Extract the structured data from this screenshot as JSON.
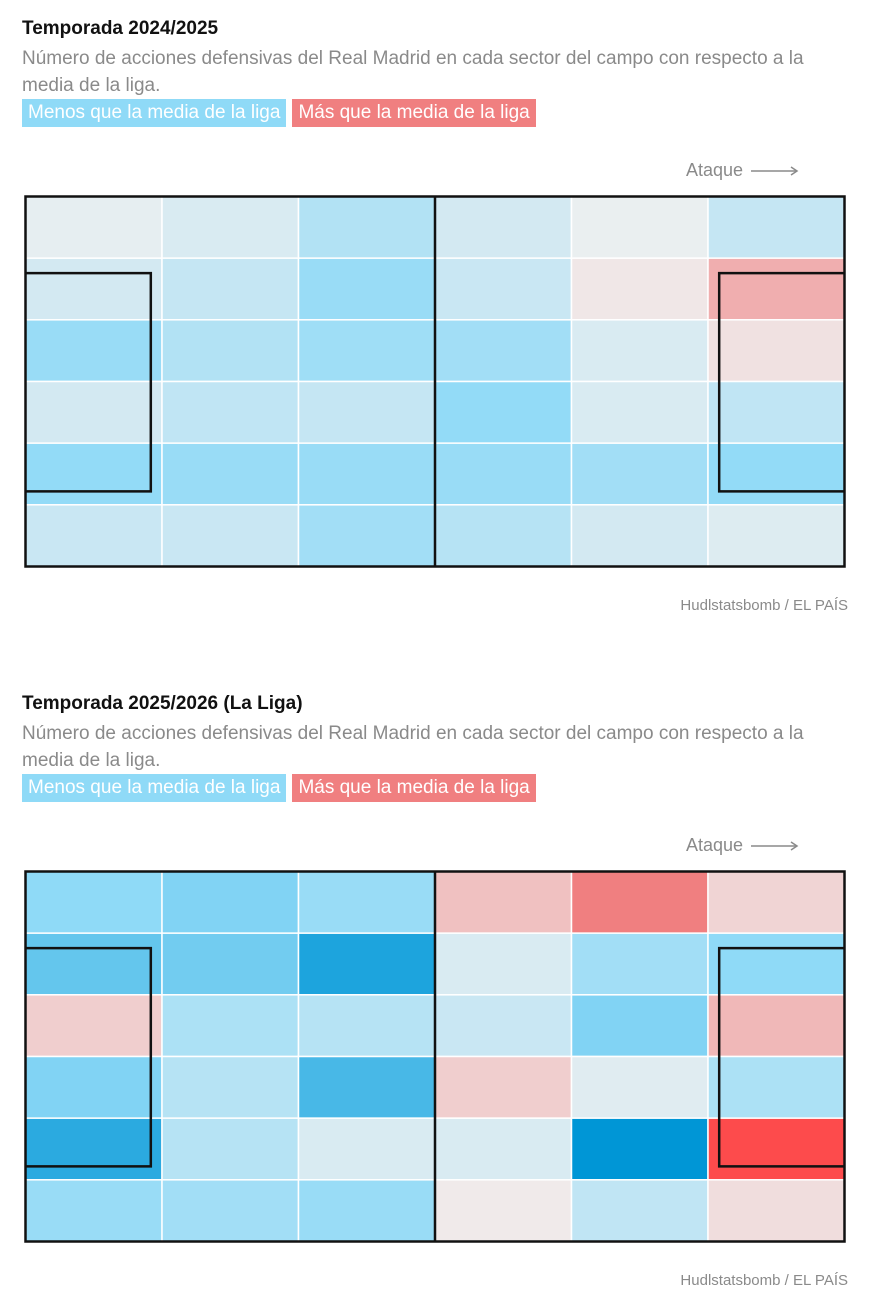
{
  "colors": {
    "less": "#8fdaf7",
    "more": "#f07f80",
    "lines": "#111111",
    "text_muted": "#8a8a8a"
  },
  "chart_data": [
    {
      "type": "heatmap",
      "title": "Temporada 2024/2025",
      "subtitle": "Número de acciones defensivas del Real Madrid en cada sector del campo con respecto a la media de la liga.",
      "legend": {
        "less": "Menos que la media de la liga",
        "more": "Más que la media de la liga"
      },
      "direction_label": "Ataque",
      "source": "Hudlstatsbomb / EL PAÍS",
      "rows": 6,
      "cols": 6,
      "value_scale": "relative to league average; negative = less (blue), positive = more (red)",
      "grid": [
        [
          -0.05,
          -0.12,
          -0.32,
          -0.15,
          -0.03,
          -0.22
        ],
        [
          -0.15,
          -0.22,
          -0.45,
          -0.2,
          0.05,
          0.35
        ],
        [
          -0.45,
          -0.32,
          -0.42,
          -0.4,
          -0.12,
          0.08
        ],
        [
          -0.15,
          -0.25,
          -0.22,
          -0.48,
          -0.12,
          -0.25
        ],
        [
          -0.48,
          -0.45,
          -0.45,
          -0.45,
          -0.4,
          -0.48
        ],
        [
          -0.2,
          -0.2,
          -0.4,
          -0.3,
          -0.15,
          -0.1
        ]
      ]
    },
    {
      "type": "heatmap",
      "title": "Temporada 2025/2026 (La Liga)",
      "subtitle": "Número de acciones defensivas del Real Madrid en cada sector del campo con respecto a la media de la liga.",
      "legend": {
        "less": "Menos que la media de la liga",
        "more": "Más que la media de la liga"
      },
      "direction_label": "Ataque",
      "source": "Hudlstatsbomb / EL PAÍS",
      "rows": 6,
      "cols": 6,
      "value_scale": "relative to league average; negative = less (blue), positive = more (red)",
      "grid": [
        [
          -0.5,
          -0.55,
          -0.45,
          0.25,
          0.6,
          0.15
        ],
        [
          -0.65,
          -0.6,
          -0.9,
          -0.12,
          -0.4,
          -0.5
        ],
        [
          0.18,
          -0.35,
          -0.3,
          -0.2,
          -0.55,
          0.3
        ],
        [
          -0.55,
          -0.3,
          -0.75,
          0.18,
          -0.08,
          -0.35
        ],
        [
          -0.85,
          -0.3,
          -0.12,
          -0.12,
          -1.0,
          0.95
        ],
        [
          -0.45,
          -0.4,
          -0.45,
          0.03,
          -0.25,
          0.1
        ]
      ]
    }
  ]
}
